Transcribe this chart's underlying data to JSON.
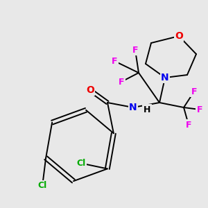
{
  "bg_color": "#e8e8e8",
  "bond_color": "#000000",
  "atom_colors": {
    "F": "#ee00ee",
    "Cl": "#00aa00",
    "N": "#0000ee",
    "O": "#ee0000",
    "C": "#000000",
    "H": "#000000"
  },
  "fig_width": 3.0,
  "fig_height": 3.0,
  "dpi": 100
}
